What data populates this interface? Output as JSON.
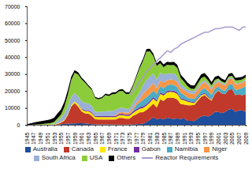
{
  "chart_data": {
    "type": "area",
    "stacked": true,
    "legend": "bottom",
    "x": [
      1945,
      1946,
      1947,
      1948,
      1949,
      1950,
      1951,
      1952,
      1953,
      1954,
      1955,
      1956,
      1957,
      1958,
      1959,
      1960,
      1961,
      1962,
      1963,
      1964,
      1965,
      1966,
      1967,
      1968,
      1969,
      1970,
      1971,
      1972,
      1973,
      1974,
      1975,
      1976,
      1977,
      1978,
      1979,
      1980,
      1981,
      1982,
      1983,
      1984,
      1985,
      1986,
      1987,
      1988,
      1989,
      1990,
      1991,
      1992,
      1993,
      1994,
      1995,
      1996,
      1997,
      1998,
      1999,
      2000,
      2001,
      2002,
      2003,
      2004,
      2005,
      2006,
      2007,
      2008,
      2009
    ],
    "xlim": [
      1945,
      2009
    ],
    "xticks": [
      1945,
      1947,
      1949,
      1951,
      1953,
      1955,
      1957,
      1959,
      1961,
      1963,
      1965,
      1967,
      1969,
      1971,
      1973,
      1975,
      1977,
      1979,
      1981,
      1983,
      1985,
      1987,
      1989,
      1991,
      1993,
      1995,
      1997,
      1999,
      2001,
      2003,
      2005,
      2007,
      2009
    ],
    "ylim": [
      0,
      70000
    ],
    "yticks": [
      0,
      10000,
      20000,
      30000,
      40000,
      50000,
      60000,
      70000
    ],
    "series": [
      {
        "name": "Australia",
        "color": "#1f4e9c",
        "values": [
          0,
          0,
          0,
          0,
          0,
          0,
          0,
          0,
          0,
          0,
          300,
          500,
          700,
          800,
          800,
          900,
          900,
          800,
          600,
          400,
          300,
          200,
          200,
          200,
          200,
          200,
          100,
          100,
          100,
          100,
          100,
          400,
          400,
          500,
          700,
          1600,
          2900,
          4500,
          3200,
          3800,
          3200,
          4200,
          3700,
          3500,
          3700,
          3500,
          3800,
          2300,
          2300,
          2200,
          3700,
          4900,
          5500,
          4900,
          6000,
          7600,
          7700,
          6900,
          7600,
          9000,
          9500,
          7600,
          8600,
          8400,
          8000
        ]
      },
      {
        "name": "Canada",
        "color": "#c0392b",
        "values": [
          0,
          0,
          0,
          0,
          0,
          0,
          0,
          0,
          0,
          500,
          1000,
          2000,
          5000,
          10000,
          12000,
          10000,
          7000,
          6000,
          6000,
          5000,
          3000,
          3000,
          3000,
          3000,
          3000,
          3000,
          3000,
          4000,
          4000,
          3500,
          3500,
          4800,
          5800,
          6800,
          6800,
          7100,
          7700,
          8000,
          7100,
          11200,
          10900,
          11700,
          12400,
          12400,
          11300,
          8700,
          8200,
          9300,
          9200,
          9600,
          10500,
          11700,
          12000,
          10900,
          8200,
          10700,
          12500,
          11600,
          10500,
          11600,
          11600,
          9900,
          9500,
          9000,
          10200
        ]
      },
      {
        "name": "France",
        "color": "#ffe600",
        "values": [
          0,
          0,
          0,
          0,
          0,
          100,
          100,
          200,
          200,
          300,
          300,
          400,
          500,
          700,
          1000,
          1100,
          1200,
          1300,
          1400,
          1400,
          1400,
          1300,
          1300,
          1300,
          1300,
          1300,
          1400,
          1500,
          1600,
          1600,
          1700,
          1700,
          2100,
          2200,
          2400,
          2600,
          2600,
          2900,
          3300,
          3200,
          3200,
          3200,
          3400,
          3400,
          3200,
          2800,
          2500,
          2100,
          1700,
          1000,
          1000,
          950,
          750,
          500,
          450,
          300,
          180,
          20,
          0,
          0,
          0,
          0,
          0,
          0,
          0
        ]
      },
      {
        "name": "Gabon",
        "color": "#7030a0",
        "values": [
          0,
          0,
          0,
          0,
          0,
          0,
          0,
          0,
          0,
          0,
          0,
          0,
          0,
          0,
          0,
          0,
          300,
          500,
          600,
          600,
          600,
          600,
          600,
          600,
          600,
          700,
          800,
          800,
          800,
          800,
          800,
          900,
          900,
          1000,
          1100,
          1000,
          1000,
          1000,
          1000,
          900,
          900,
          900,
          800,
          900,
          900,
          700,
          700,
          600,
          600,
          600,
          600,
          600,
          500,
          700,
          300,
          0,
          0,
          0,
          0,
          0,
          0,
          0,
          0,
          0,
          0
        ]
      },
      {
        "name": "Namibia",
        "color": "#4bacc6",
        "values": [
          0,
          0,
          0,
          0,
          0,
          0,
          0,
          0,
          0,
          0,
          0,
          0,
          0,
          0,
          0,
          0,
          0,
          0,
          0,
          0,
          0,
          0,
          0,
          0,
          0,
          0,
          0,
          0,
          0,
          0,
          0,
          600,
          2300,
          2700,
          3800,
          4000,
          3900,
          3800,
          3700,
          3700,
          3400,
          3300,
          3500,
          3400,
          3200,
          3200,
          2500,
          1700,
          1700,
          1900,
          2000,
          2400,
          2900,
          2800,
          2700,
          2700,
          2200,
          2300,
          2000,
          3000,
          3100,
          3100,
          2900,
          4400,
          4600
        ]
      },
      {
        "name": "Niger",
        "color": "#f79646",
        "values": [
          0,
          0,
          0,
          0,
          0,
          0,
          0,
          0,
          0,
          0,
          0,
          0,
          0,
          0,
          0,
          0,
          0,
          0,
          0,
          0,
          0,
          0,
          0,
          0,
          0,
          0,
          400,
          900,
          1000,
          1100,
          1300,
          1500,
          1600,
          2000,
          3600,
          4100,
          4400,
          4300,
          3400,
          3300,
          3200,
          3100,
          3000,
          3000,
          3000,
          2800,
          3000,
          3000,
          2900,
          2900,
          3000,
          3300,
          3500,
          3700,
          2900,
          2900,
          2900,
          3100,
          3100,
          3300,
          3100,
          3400,
          3200,
          3000,
          3200
        ]
      },
      {
        "name": "South Africa",
        "color": "#9bb0d6",
        "values": [
          0,
          0,
          0,
          0,
          0,
          0,
          0,
          100,
          500,
          1500,
          2500,
          3800,
          4500,
          5000,
          5000,
          4800,
          4600,
          4400,
          4000,
          3800,
          2400,
          2500,
          2600,
          3000,
          3100,
          3000,
          3100,
          2600,
          2600,
          2300,
          2000,
          2800,
          3400,
          4000,
          5000,
          6100,
          6100,
          5800,
          5000,
          4600,
          4900,
          3900,
          3400,
          3800,
          3000,
          2500,
          1700,
          1700,
          1700,
          1700,
          1400,
          1400,
          1100,
          1000,
          1000,
          900,
          900,
          800,
          800,
          700,
          700,
          500,
          500,
          600,
          600
        ]
      },
      {
        "name": "USA",
        "color": "#8ccc3a",
        "values": [
          0,
          0,
          100,
          200,
          400,
          500,
          700,
          800,
          1000,
          1500,
          2000,
          4000,
          7000,
          10000,
          12000,
          13000,
          13000,
          12000,
          10000,
          9500,
          8000,
          7500,
          8000,
          9500,
          8800,
          9900,
          9500,
          9900,
          10000,
          8800,
          8900,
          9800,
          11500,
          14200,
          14400,
          16800,
          14800,
          10300,
          8100,
          5700,
          4400,
          5200,
          5000,
          5000,
          5300,
          3400,
          3000,
          2200,
          1200,
          1300,
          2300,
          2400,
          2200,
          1800,
          1800,
          1500,
          1000,
          900,
          800,
          900,
          1000,
          1700,
          1700,
          1400,
          1500
        ]
      },
      {
        "name": "Others",
        "color": "#000000",
        "values": [
          300,
          800,
          1200,
          1500,
          1700,
          1800,
          2000,
          2200,
          2500,
          3000,
          3000,
          3000,
          2800,
          2000,
          1500,
          1200,
          1000,
          900,
          800,
          700,
          700,
          700,
          700,
          800,
          900,
          1000,
          1000,
          1000,
          1000,
          1000,
          1000,
          1000,
          1100,
          1200,
          1300,
          1500,
          1500,
          1400,
          1500,
          1600,
          1600,
          1700,
          1800,
          1800,
          1900,
          2000,
          2000,
          2100,
          2000,
          2000,
          2100,
          2200,
          2100,
          2000,
          1900,
          1800,
          1700,
          1700,
          1600,
          1600,
          1700,
          1600,
          1600,
          1500,
          1500
        ]
      },
      {
        "name": "Reactor Requirements",
        "color": "#a99bd0",
        "type": "line",
        "values": [
          null,
          null,
          null,
          null,
          null,
          null,
          null,
          null,
          null,
          null,
          null,
          null,
          null,
          null,
          null,
          null,
          null,
          null,
          null,
          null,
          null,
          null,
          null,
          null,
          null,
          null,
          null,
          null,
          null,
          null,
          18000,
          20000,
          23000,
          26000,
          29000,
          32000,
          34000,
          36000,
          38000,
          40000,
          42000,
          44000,
          43000,
          45000,
          46000,
          48000,
          49000,
          50000,
          51000,
          52000,
          53000,
          54000,
          55000,
          55000,
          56000,
          57000,
          57000,
          57500,
          58000,
          58000,
          58000,
          57000,
          56000,
          58000,
          58000
        ]
      }
    ]
  }
}
